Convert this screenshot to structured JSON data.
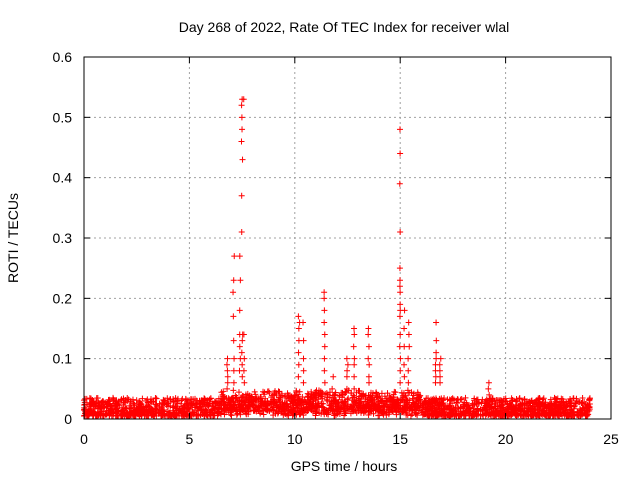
{
  "chart_data": {
    "type": "scatter",
    "title": "Day 268 of 2022, Rate Of TEC Index for receiver wlal",
    "xlabel": "GPS time / hours",
    "ylabel": "ROTI / TECUs",
    "xlim": [
      0,
      25
    ],
    "ylim": [
      0,
      0.6
    ],
    "x_ticks": [
      0,
      5,
      10,
      15,
      20,
      25
    ],
    "x_tick_labels": [
      "0",
      "5",
      "10",
      "15",
      "20",
      "25"
    ],
    "y_ticks": [
      0,
      0.1,
      0.2,
      0.3,
      0.4,
      0.5,
      0.6
    ],
    "y_tick_labels": [
      "0",
      "0.1",
      "0.2",
      "0.3",
      "0.4",
      "0.5",
      "0.6"
    ],
    "grid": true,
    "marker": "+",
    "marker_color": "#ff0000",
    "series": [
      {
        "name": "ROTI",
        "baseline": {
          "x_range": [
            0,
            24
          ],
          "typical_y": [
            0.005,
            0.035
          ]
        },
        "bursts": [
          {
            "x": 6.8,
            "values": [
              0.1,
              0.09,
              0.08,
              0.07,
              0.06,
              0.05
            ]
          },
          {
            "x": 7.1,
            "values": [
              0.27,
              0.23,
              0.21,
              0.17,
              0.13,
              0.1,
              0.08,
              0.06
            ]
          },
          {
            "x": 7.4,
            "values": [
              0.27,
              0.23,
              0.18,
              0.14,
              0.12,
              0.1,
              0.08
            ]
          },
          {
            "x": 7.5,
            "values": [
              0.53,
              0.52,
              0.5,
              0.48,
              0.46,
              0.43,
              0.37,
              0.31,
              0.14,
              0.13,
              0.11,
              0.09,
              0.07
            ]
          },
          {
            "x": 7.6,
            "values": [
              0.53,
              0.14,
              0.1,
              0.08,
              0.06
            ]
          },
          {
            "x": 10.2,
            "values": [
              0.17,
              0.16,
              0.15,
              0.13,
              0.11,
              0.09,
              0.07
            ]
          },
          {
            "x": 10.4,
            "values": [
              0.16,
              0.13,
              0.1,
              0.08,
              0.06
            ]
          },
          {
            "x": 11.4,
            "values": [
              0.21,
              0.2,
              0.18,
              0.16,
              0.14,
              0.12,
              0.1,
              0.08,
              0.06
            ]
          },
          {
            "x": 11.8,
            "values": [
              0.07,
              0.05
            ]
          },
          {
            "x": 12.5,
            "values": [
              0.1,
              0.09,
              0.08,
              0.07,
              0.05
            ]
          },
          {
            "x": 12.8,
            "values": [
              0.15,
              0.14,
              0.12,
              0.1,
              0.09,
              0.07,
              0.05
            ]
          },
          {
            "x": 13.5,
            "values": [
              0.15,
              0.14,
              0.12,
              0.1,
              0.09,
              0.07,
              0.06
            ]
          },
          {
            "x": 15.0,
            "values": [
              0.48,
              0.44,
              0.39,
              0.31,
              0.25,
              0.23,
              0.22,
              0.21,
              0.19,
              0.18,
              0.17,
              0.14,
              0.12,
              0.1,
              0.08,
              0.06
            ]
          },
          {
            "x": 15.2,
            "values": [
              0.18,
              0.15,
              0.12,
              0.09,
              0.07
            ]
          },
          {
            "x": 15.4,
            "values": [
              0.16,
              0.14,
              0.12,
              0.1,
              0.08,
              0.06
            ]
          },
          {
            "x": 16.7,
            "values": [
              0.16,
              0.13,
              0.11,
              0.1,
              0.09,
              0.08,
              0.07,
              0.06
            ]
          },
          {
            "x": 16.9,
            "values": [
              0.1,
              0.09,
              0.08,
              0.07,
              0.06
            ]
          },
          {
            "x": 19.2,
            "values": [
              0.06,
              0.05,
              0.04
            ]
          }
        ]
      }
    ]
  }
}
